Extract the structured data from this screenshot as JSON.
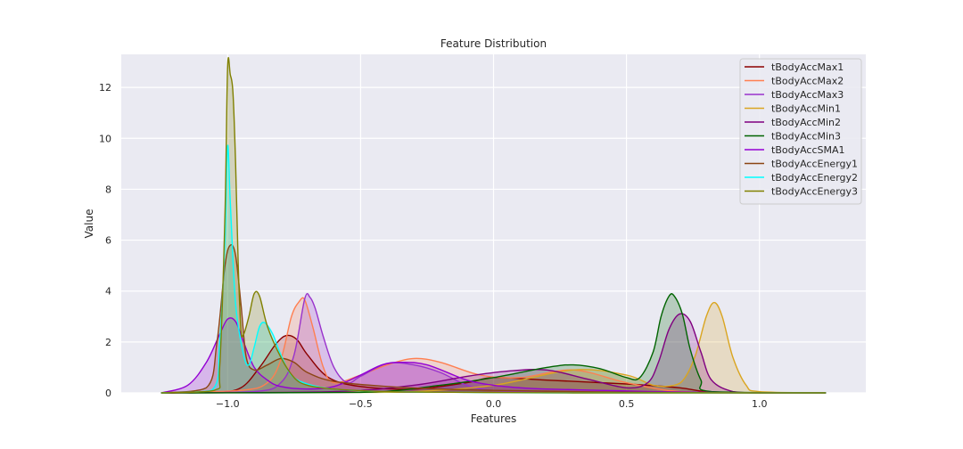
{
  "chart_data": {
    "type": "area",
    "title": "Feature Distribution",
    "xlabel": "Features",
    "ylabel": "Value",
    "xlim": [
      -1.4,
      1.4
    ],
    "ylim": [
      0,
      13.3
    ],
    "xticks": [
      -1.0,
      -0.5,
      0.0,
      0.5,
      1.0
    ],
    "xtick_labels": [
      "−1.0",
      "−0.5",
      "0.0",
      "0.5",
      "1.0"
    ],
    "yticks": [
      0,
      2,
      4,
      6,
      8,
      10,
      12
    ],
    "ytick_labels": [
      "0",
      "2",
      "4",
      "6",
      "8",
      "10",
      "12"
    ],
    "grid": true,
    "legend_position": "top-right",
    "plot_background": "#eaeaf2",
    "series": [
      {
        "name": "tBodyAccMax1",
        "color": "#8b0000",
        "x": [
          -1.25,
          -1.05,
          -0.95,
          -0.88,
          -0.82,
          -0.78,
          -0.74,
          -0.7,
          -0.62,
          -0.5,
          -0.3,
          -0.1,
          0.0,
          0.2,
          0.5,
          0.7,
          0.8,
          1.0,
          1.25
        ],
        "y": [
          0,
          0.02,
          0.2,
          1.0,
          1.9,
          2.25,
          2.1,
          1.5,
          0.6,
          0.25,
          0.15,
          0.4,
          0.6,
          0.5,
          0.35,
          0.2,
          0.05,
          0,
          0
        ]
      },
      {
        "name": "tBodyAccMax2",
        "color": "#ff7f50",
        "x": [
          -1.25,
          -0.95,
          -0.85,
          -0.8,
          -0.76,
          -0.73,
          -0.71,
          -0.68,
          -0.64,
          -0.6,
          -0.5,
          -0.4,
          -0.3,
          -0.2,
          -0.05,
          0.1,
          0.3,
          0.5,
          0.7,
          1.0,
          1.25
        ],
        "y": [
          0,
          0.1,
          0.4,
          1.3,
          3.0,
          3.6,
          3.65,
          2.6,
          1.0,
          0.4,
          0.7,
          1.1,
          1.35,
          1.2,
          0.7,
          0.6,
          0.9,
          0.4,
          0.05,
          0,
          0
        ]
      },
      {
        "name": "tBodyAccMax3",
        "color": "#9932cc",
        "x": [
          -1.25,
          -0.9,
          -0.8,
          -0.75,
          -0.71,
          -0.69,
          -0.67,
          -0.64,
          -0.6,
          -0.55,
          -0.5,
          -0.4,
          -0.3,
          -0.2,
          -0.1,
          0.0,
          0.2,
          0.5,
          1.0,
          1.25
        ],
        "y": [
          0,
          0.05,
          0.4,
          1.5,
          3.7,
          3.75,
          3.3,
          2.2,
          1.0,
          0.4,
          0.65,
          1.15,
          1.1,
          0.8,
          0.3,
          0.1,
          0.05,
          0.02,
          0,
          0
        ]
      },
      {
        "name": "tBodyAccMin1",
        "color": "#daa520",
        "x": [
          -1.25,
          -0.6,
          -0.3,
          0.0,
          0.3,
          0.5,
          0.6,
          0.68,
          0.72,
          0.76,
          0.8,
          0.83,
          0.86,
          0.9,
          0.95,
          1.0,
          1.25
        ],
        "y": [
          0,
          0.02,
          0.05,
          0.3,
          0.9,
          0.7,
          0.3,
          0.3,
          0.6,
          1.5,
          3.0,
          3.55,
          3.0,
          1.4,
          0.3,
          0.05,
          0
        ]
      },
      {
        "name": "tBodyAccMin2",
        "color": "#800080",
        "x": [
          -1.25,
          -0.6,
          -0.3,
          -0.1,
          0.05,
          0.2,
          0.35,
          0.5,
          0.58,
          0.62,
          0.66,
          0.7,
          0.74,
          0.78,
          0.82,
          0.9,
          1.0,
          1.25
        ],
        "y": [
          0,
          0.05,
          0.3,
          0.65,
          0.85,
          0.9,
          0.55,
          0.2,
          0.4,
          1.2,
          2.5,
          3.1,
          2.8,
          1.6,
          0.5,
          0.05,
          0,
          0
        ]
      },
      {
        "name": "tBodyAccMin3",
        "color": "#006400",
        "x": [
          -1.25,
          -0.5,
          -0.2,
          0.0,
          0.2,
          0.3,
          0.4,
          0.5,
          0.55,
          0.6,
          0.63,
          0.66,
          0.68,
          0.71,
          0.74,
          0.78,
          0.82,
          1.25
        ],
        "y": [
          0,
          0.02,
          0.3,
          0.6,
          1.0,
          1.1,
          0.95,
          0.6,
          0.6,
          1.6,
          3.0,
          3.8,
          3.8,
          3.1,
          1.7,
          0.5,
          0.05,
          0
        ]
      },
      {
        "name": "tBodyAccSMA1",
        "color": "#9400d3",
        "x": [
          -1.25,
          -1.15,
          -1.08,
          -1.03,
          -1.0,
          -0.97,
          -0.94,
          -0.9,
          -0.85,
          -0.8,
          -0.7,
          -0.6,
          -0.5,
          -0.42,
          -0.35,
          -0.25,
          -0.1,
          0.0,
          0.1,
          0.2,
          0.4,
          0.6,
          0.8,
          1.0,
          1.25
        ],
        "y": [
          0,
          0.3,
          1.2,
          2.3,
          2.9,
          2.8,
          2.0,
          1.0,
          0.5,
          0.25,
          0.15,
          0.25,
          0.7,
          1.1,
          1.2,
          1.1,
          0.5,
          0.3,
          0.2,
          0.15,
          0.1,
          0.05,
          0.02,
          0,
          0
        ]
      },
      {
        "name": "tBodyAccEnergy1",
        "color": "#8b4513",
        "x": [
          -1.25,
          -1.08,
          -1.04,
          -1.01,
          -0.99,
          -0.97,
          -0.95,
          -0.93,
          -0.9,
          -0.85,
          -0.8,
          -0.75,
          -0.7,
          -0.6,
          -0.4,
          -0.2,
          0.0,
          0.3,
          0.6,
          1.0,
          1.25
        ],
        "y": [
          0,
          0.2,
          2.0,
          5.0,
          5.8,
          5.4,
          3.5,
          1.4,
          0.9,
          1.1,
          1.35,
          1.2,
          0.8,
          0.45,
          0.25,
          0.15,
          0.1,
          0.05,
          0.02,
          0,
          0
        ]
      },
      {
        "name": "tBodyAccEnergy2",
        "color": "#00ffff",
        "x": [
          -1.25,
          -1.06,
          -1.03,
          -1.01,
          -1.0,
          -0.99,
          -0.97,
          -0.94,
          -0.92,
          -0.9,
          -0.88,
          -0.86,
          -0.83,
          -0.8,
          -0.76,
          -0.7,
          -0.6,
          -0.4,
          -0.1,
          0.2,
          1.0,
          1.25
        ],
        "y": [
          0,
          0.1,
          2.0,
          6.0,
          9.7,
          7.5,
          3.5,
          1.5,
          1.1,
          1.8,
          2.6,
          2.75,
          2.3,
          1.5,
          0.7,
          0.35,
          0.15,
          0.05,
          0.02,
          0,
          0,
          0
        ]
      },
      {
        "name": "tBodyAccEnergy3",
        "color": "#808000",
        "x": [
          -1.25,
          -1.05,
          -1.03,
          -1.01,
          -1.0,
          -0.99,
          -0.98,
          -0.97,
          -0.96,
          -0.95,
          -0.94,
          -0.92,
          -0.9,
          -0.88,
          -0.85,
          -0.8,
          -0.75,
          -0.7,
          -0.6,
          -0.4,
          -0.1,
          0.3,
          1.0,
          1.25
        ],
        "y": [
          0,
          0.1,
          1.0,
          7.0,
          12.8,
          12.5,
          11.8,
          9.0,
          5.0,
          2.5,
          2.3,
          3.0,
          3.9,
          3.8,
          2.6,
          1.4,
          0.6,
          0.3,
          0.15,
          0.05,
          0.02,
          0,
          0,
          0
        ]
      }
    ]
  }
}
